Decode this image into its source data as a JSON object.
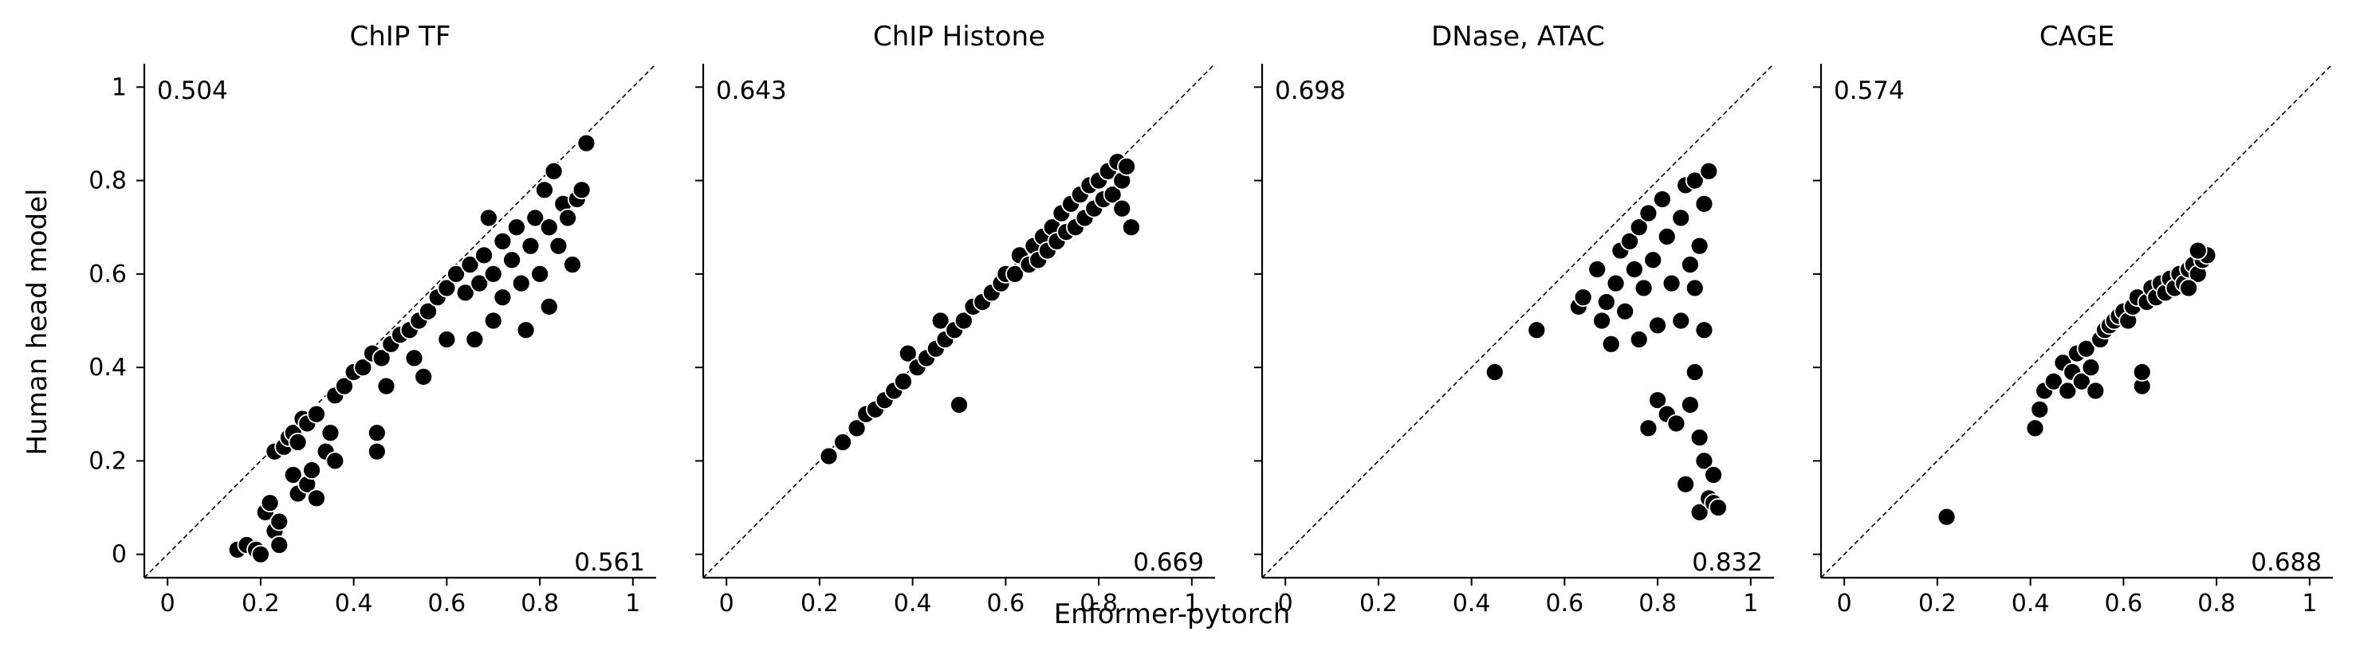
{
  "figure": {
    "ylabel": "Human head model",
    "xlabel": "Enformer-pytorch"
  },
  "chart_data": [
    {
      "type": "scatter",
      "title": "ChIP TF",
      "xlim": [
        -0.05,
        1.05
      ],
      "ylim": [
        -0.05,
        1.05
      ],
      "xticks": [
        0,
        0.2,
        0.4,
        0.6,
        0.8,
        1
      ],
      "yticks": [
        0,
        0.2,
        0.4,
        0.6,
        0.8,
        1
      ],
      "reference_line": "y = x (dashed)",
      "annotations": {
        "top_left": "0.504",
        "bottom_right": "0.561"
      },
      "points": [
        [
          0.15,
          0.01
        ],
        [
          0.17,
          0.02
        ],
        [
          0.19,
          0.01
        ],
        [
          0.2,
          0.0
        ],
        [
          0.21,
          0.09
        ],
        [
          0.22,
          0.11
        ],
        [
          0.23,
          0.05
        ],
        [
          0.24,
          0.07
        ],
        [
          0.24,
          0.02
        ],
        [
          0.23,
          0.22
        ],
        [
          0.25,
          0.23
        ],
        [
          0.26,
          0.25
        ],
        [
          0.27,
          0.26
        ],
        [
          0.28,
          0.24
        ],
        [
          0.29,
          0.29
        ],
        [
          0.3,
          0.28
        ],
        [
          0.32,
          0.3
        ],
        [
          0.27,
          0.17
        ],
        [
          0.28,
          0.13
        ],
        [
          0.3,
          0.15
        ],
        [
          0.31,
          0.18
        ],
        [
          0.32,
          0.12
        ],
        [
          0.34,
          0.22
        ],
        [
          0.35,
          0.26
        ],
        [
          0.36,
          0.2
        ],
        [
          0.36,
          0.34
        ],
        [
          0.38,
          0.36
        ],
        [
          0.4,
          0.39
        ],
        [
          0.42,
          0.4
        ],
        [
          0.44,
          0.43
        ],
        [
          0.45,
          0.26
        ],
        [
          0.45,
          0.22
        ],
        [
          0.47,
          0.36
        ],
        [
          0.46,
          0.42
        ],
        [
          0.48,
          0.45
        ],
        [
          0.5,
          0.47
        ],
        [
          0.52,
          0.48
        ],
        [
          0.53,
          0.42
        ],
        [
          0.54,
          0.5
        ],
        [
          0.55,
          0.38
        ],
        [
          0.56,
          0.52
        ],
        [
          0.58,
          0.55
        ],
        [
          0.6,
          0.57
        ],
        [
          0.6,
          0.46
        ],
        [
          0.62,
          0.6
        ],
        [
          0.64,
          0.56
        ],
        [
          0.65,
          0.62
        ],
        [
          0.66,
          0.46
        ],
        [
          0.67,
          0.58
        ],
        [
          0.68,
          0.64
        ],
        [
          0.69,
          0.72
        ],
        [
          0.7,
          0.6
        ],
        [
          0.7,
          0.5
        ],
        [
          0.72,
          0.55
        ],
        [
          0.72,
          0.67
        ],
        [
          0.74,
          0.63
        ],
        [
          0.75,
          0.7
        ],
        [
          0.76,
          0.58
        ],
        [
          0.77,
          0.48
        ],
        [
          0.78,
          0.66
        ],
        [
          0.79,
          0.72
        ],
        [
          0.8,
          0.6
        ],
        [
          0.81,
          0.78
        ],
        [
          0.82,
          0.7
        ],
        [
          0.82,
          0.53
        ],
        [
          0.83,
          0.82
        ],
        [
          0.84,
          0.66
        ],
        [
          0.85,
          0.75
        ],
        [
          0.86,
          0.72
        ],
        [
          0.87,
          0.62
        ],
        [
          0.88,
          0.76
        ],
        [
          0.89,
          0.78
        ],
        [
          0.9,
          0.88
        ]
      ]
    },
    {
      "type": "scatter",
      "title": "ChIP Histone",
      "xlim": [
        -0.05,
        1.05
      ],
      "ylim": [
        -0.05,
        1.05
      ],
      "xticks": [
        0,
        0.2,
        0.4,
        0.6,
        0.8,
        1
      ],
      "yticks": [
        0,
        0.2,
        0.4,
        0.6,
        0.8,
        1
      ],
      "reference_line": "y = x (dashed)",
      "annotations": {
        "top_left": "0.643",
        "bottom_right": "0.669"
      },
      "points": [
        [
          0.22,
          0.21
        ],
        [
          0.25,
          0.24
        ],
        [
          0.28,
          0.27
        ],
        [
          0.3,
          0.3
        ],
        [
          0.32,
          0.31
        ],
        [
          0.34,
          0.33
        ],
        [
          0.36,
          0.35
        ],
        [
          0.38,
          0.37
        ],
        [
          0.39,
          0.43
        ],
        [
          0.41,
          0.4
        ],
        [
          0.43,
          0.42
        ],
        [
          0.45,
          0.44
        ],
        [
          0.46,
          0.5
        ],
        [
          0.47,
          0.46
        ],
        [
          0.49,
          0.48
        ],
        [
          0.5,
          0.32
        ],
        [
          0.51,
          0.5
        ],
        [
          0.53,
          0.53
        ],
        [
          0.55,
          0.54
        ],
        [
          0.57,
          0.56
        ],
        [
          0.59,
          0.58
        ],
        [
          0.6,
          0.6
        ],
        [
          0.62,
          0.6
        ],
        [
          0.63,
          0.64
        ],
        [
          0.65,
          0.62
        ],
        [
          0.66,
          0.66
        ],
        [
          0.67,
          0.63
        ],
        [
          0.68,
          0.68
        ],
        [
          0.69,
          0.65
        ],
        [
          0.7,
          0.7
        ],
        [
          0.71,
          0.67
        ],
        [
          0.72,
          0.73
        ],
        [
          0.73,
          0.69
        ],
        [
          0.74,
          0.75
        ],
        [
          0.75,
          0.7
        ],
        [
          0.76,
          0.77
        ],
        [
          0.77,
          0.72
        ],
        [
          0.78,
          0.79
        ],
        [
          0.79,
          0.74
        ],
        [
          0.8,
          0.8
        ],
        [
          0.81,
          0.76
        ],
        [
          0.82,
          0.82
        ],
        [
          0.83,
          0.77
        ],
        [
          0.84,
          0.84
        ],
        [
          0.85,
          0.8
        ],
        [
          0.86,
          0.83
        ],
        [
          0.87,
          0.7
        ],
        [
          0.85,
          0.74
        ]
      ]
    },
    {
      "type": "scatter",
      "title": "DNase, ATAC",
      "xlim": [
        -0.05,
        1.05
      ],
      "ylim": [
        -0.05,
        1.05
      ],
      "xticks": [
        0,
        0.2,
        0.4,
        0.6,
        0.8,
        1
      ],
      "yticks": [
        0,
        0.2,
        0.4,
        0.6,
        0.8,
        1
      ],
      "reference_line": "y = x (dashed)",
      "annotations": {
        "top_left": "0.698",
        "bottom_right": "0.832"
      },
      "points": [
        [
          0.45,
          0.39
        ],
        [
          0.54,
          0.48
        ],
        [
          0.63,
          0.53
        ],
        [
          0.64,
          0.55
        ],
        [
          0.67,
          0.61
        ],
        [
          0.68,
          0.5
        ],
        [
          0.69,
          0.54
        ],
        [
          0.7,
          0.45
        ],
        [
          0.71,
          0.58
        ],
        [
          0.72,
          0.65
        ],
        [
          0.73,
          0.52
        ],
        [
          0.74,
          0.67
        ],
        [
          0.75,
          0.61
        ],
        [
          0.76,
          0.46
        ],
        [
          0.76,
          0.7
        ],
        [
          0.77,
          0.57
        ],
        [
          0.78,
          0.73
        ],
        [
          0.78,
          0.27
        ],
        [
          0.79,
          0.63
        ],
        [
          0.8,
          0.33
        ],
        [
          0.8,
          0.49
        ],
        [
          0.81,
          0.76
        ],
        [
          0.82,
          0.3
        ],
        [
          0.82,
          0.68
        ],
        [
          0.83,
          0.58
        ],
        [
          0.84,
          0.28
        ],
        [
          0.85,
          0.72
        ],
        [
          0.85,
          0.5
        ],
        [
          0.86,
          0.79
        ],
        [
          0.86,
          0.15
        ],
        [
          0.87,
          0.32
        ],
        [
          0.87,
          0.62
        ],
        [
          0.88,
          0.8
        ],
        [
          0.88,
          0.39
        ],
        [
          0.89,
          0.09
        ],
        [
          0.89,
          0.25
        ],
        [
          0.9,
          0.75
        ],
        [
          0.9,
          0.2
        ],
        [
          0.9,
          0.48
        ],
        [
          0.91,
          0.12
        ],
        [
          0.91,
          0.82
        ],
        [
          0.92,
          0.17
        ],
        [
          0.92,
          0.11
        ],
        [
          0.93,
          0.1
        ],
        [
          0.88,
          0.57
        ],
        [
          0.89,
          0.66
        ]
      ]
    },
    {
      "type": "scatter",
      "title": "CAGE",
      "xlim": [
        -0.05,
        1.05
      ],
      "ylim": [
        -0.05,
        1.05
      ],
      "xticks": [
        0,
        0.2,
        0.4,
        0.6,
        0.8,
        1
      ],
      "yticks": [
        0,
        0.2,
        0.4,
        0.6,
        0.8,
        1
      ],
      "reference_line": "y = x (dashed)",
      "annotations": {
        "top_left": "0.574",
        "bottom_right": "0.688"
      },
      "points": [
        [
          0.22,
          0.08
        ],
        [
          0.41,
          0.27
        ],
        [
          0.42,
          0.31
        ],
        [
          0.43,
          0.35
        ],
        [
          0.45,
          0.37
        ],
        [
          0.47,
          0.41
        ],
        [
          0.48,
          0.35
        ],
        [
          0.49,
          0.39
        ],
        [
          0.5,
          0.43
        ],
        [
          0.51,
          0.37
        ],
        [
          0.52,
          0.44
        ],
        [
          0.53,
          0.4
        ],
        [
          0.54,
          0.35
        ],
        [
          0.55,
          0.46
        ],
        [
          0.56,
          0.48
        ],
        [
          0.57,
          0.49
        ],
        [
          0.58,
          0.5
        ],
        [
          0.59,
          0.51
        ],
        [
          0.6,
          0.52
        ],
        [
          0.61,
          0.5
        ],
        [
          0.62,
          0.53
        ],
        [
          0.63,
          0.55
        ],
        [
          0.64,
          0.36
        ],
        [
          0.64,
          0.39
        ],
        [
          0.65,
          0.54
        ],
        [
          0.66,
          0.57
        ],
        [
          0.67,
          0.55
        ],
        [
          0.68,
          0.58
        ],
        [
          0.69,
          0.56
        ],
        [
          0.7,
          0.59
        ],
        [
          0.71,
          0.57
        ],
        [
          0.72,
          0.6
        ],
        [
          0.73,
          0.58
        ],
        [
          0.74,
          0.61
        ],
        [
          0.75,
          0.62
        ],
        [
          0.76,
          0.6
        ],
        [
          0.77,
          0.63
        ],
        [
          0.78,
          0.64
        ],
        [
          0.76,
          0.65
        ],
        [
          0.74,
          0.57
        ]
      ]
    }
  ]
}
